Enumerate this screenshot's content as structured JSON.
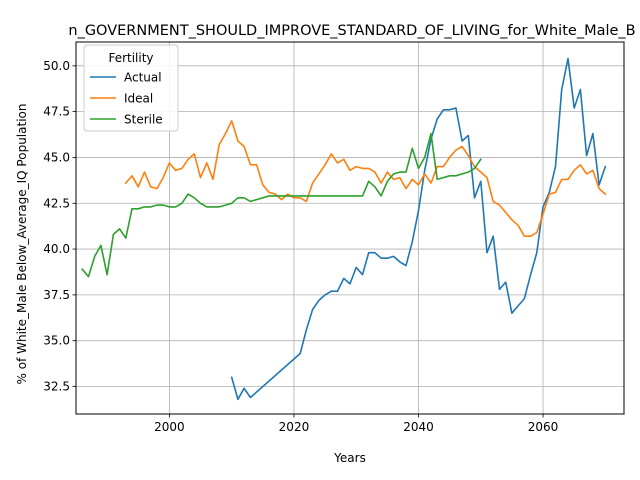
{
  "chart_data": {
    "type": "line",
    "title": "n_GOVERNMENT_SHOULD_IMPROVE_STANDARD_OF_LIVING_for_White_Male_B",
    "xlabel": "Years",
    "ylabel": "% of White_Male Below_Average_IQ Population",
    "xlim": [
      1985,
      2073
    ],
    "ylim": [
      31.0,
      51.3
    ],
    "xticks": [
      2000,
      2020,
      2040,
      2060
    ],
    "xtick_labels": [
      "2000",
      "2020",
      "2040",
      "2060"
    ],
    "yticks": [
      32.5,
      35.0,
      37.5,
      40.0,
      42.5,
      45.0,
      47.5,
      50.0
    ],
    "ytick_labels": [
      "32.5",
      "35.0",
      "37.5",
      "40.0",
      "42.5",
      "45.0",
      "47.5",
      "50.0"
    ],
    "grid": true,
    "legend": {
      "title": "Fertility",
      "position": "top-left"
    },
    "series": [
      {
        "name": "Actual",
        "color": "#1f77b4",
        "x": [
          2010,
          2011,
          2012,
          2013,
          2021,
          2022,
          2023,
          2024,
          2025,
          2026,
          2027,
          2028,
          2029,
          2030,
          2031,
          2032,
          2033,
          2034,
          2035,
          2036,
          2037,
          2038,
          2039,
          2040,
          2041,
          2042,
          2043,
          2044,
          2045,
          2046,
          2047,
          2048,
          2049,
          2050,
          2051,
          2052,
          2053,
          2054,
          2055,
          2056,
          2057,
          2058,
          2059,
          2060,
          2061,
          2062,
          2063,
          2064,
          2065,
          2066,
          2067,
          2068,
          2069,
          2070
        ],
        "y": [
          33.0,
          31.8,
          32.4,
          31.9,
          34.3,
          35.6,
          36.7,
          37.2,
          37.5,
          37.7,
          37.7,
          38.4,
          38.1,
          39.0,
          38.6,
          39.8,
          39.8,
          39.5,
          39.5,
          39.6,
          39.3,
          39.1,
          40.4,
          42.1,
          44.3,
          46.0,
          47.1,
          47.6,
          47.6,
          47.7,
          45.9,
          46.2,
          42.8,
          43.7,
          39.8,
          40.7,
          37.8,
          38.2,
          36.5,
          36.9,
          37.3,
          38.6,
          39.8,
          42.3,
          43.1,
          44.5,
          48.7,
          50.4,
          47.7,
          48.7,
          45.1,
          46.3,
          43.5,
          44.5
        ]
      },
      {
        "name": "Ideal",
        "color": "#ff7f0e",
        "x": [
          1993,
          1994,
          1995,
          1996,
          1997,
          1998,
          1999,
          2000,
          2001,
          2002,
          2003,
          2004,
          2005,
          2006,
          2007,
          2008,
          2009,
          2010,
          2011,
          2012,
          2013,
          2014,
          2015,
          2016,
          2017,
          2018,
          2019,
          2020,
          2021,
          2022,
          2023,
          2024,
          2025,
          2026,
          2027,
          2028,
          2029,
          2030,
          2031,
          2032,
          2033,
          2034,
          2035,
          2036,
          2037,
          2038,
          2039,
          2040,
          2041,
          2042,
          2043,
          2044,
          2045,
          2046,
          2047,
          2048,
          2049,
          2050,
          2051,
          2052,
          2053,
          2054,
          2055,
          2056,
          2057,
          2058,
          2059,
          2060,
          2061,
          2062,
          2063,
          2064,
          2065,
          2066,
          2067,
          2068,
          2069,
          2070
        ],
        "y": [
          43.6,
          44.0,
          43.4,
          44.2,
          43.4,
          43.3,
          43.9,
          44.7,
          44.3,
          44.4,
          44.9,
          45.2,
          43.9,
          44.7,
          43.8,
          45.7,
          46.3,
          47.0,
          45.9,
          45.6,
          44.6,
          44.6,
          43.5,
          43.1,
          43.0,
          42.7,
          43.0,
          42.8,
          42.8,
          42.6,
          43.6,
          44.1,
          44.6,
          45.2,
          44.7,
          44.9,
          44.3,
          44.5,
          44.4,
          44.4,
          44.2,
          43.6,
          44.2,
          43.8,
          43.9,
          43.3,
          43.8,
          43.5,
          44.1,
          43.6,
          44.5,
          44.5,
          45.0,
          45.4,
          45.6,
          45.1,
          44.5,
          44.2,
          43.9,
          42.6,
          42.4,
          42.0,
          41.6,
          41.3,
          40.7,
          40.7,
          40.9,
          41.9,
          43.0,
          43.1,
          43.8,
          43.8,
          44.3,
          44.6,
          44.1,
          44.3,
          43.3,
          43.0
        ]
      },
      {
        "name": "Sterile",
        "color": "#2ca02c",
        "x": [
          1986,
          1987,
          1988,
          1989,
          1990,
          1991,
          1992,
          1993,
          1994,
          1995,
          1996,
          1997,
          1998,
          1999,
          2000,
          2001,
          2002,
          2003,
          2004,
          2005,
          2006,
          2007,
          2008,
          2009,
          2010,
          2011,
          2012,
          2013,
          2014,
          2015,
          2016,
          2017,
          2018,
          2019,
          2020,
          2021,
          2022,
          2023,
          2024,
          2025,
          2026,
          2027,
          2028,
          2029,
          2030,
          2031,
          2032,
          2033,
          2034,
          2035,
          2036,
          2037,
          2038,
          2039,
          2040,
          2041,
          2042,
          2043,
          2044,
          2045,
          2046,
          2047,
          2048,
          2049,
          2050
        ],
        "y": [
          38.9,
          38.5,
          39.6,
          40.2,
          38.6,
          40.8,
          41.1,
          40.6,
          42.2,
          42.2,
          42.3,
          42.3,
          42.4,
          42.4,
          42.3,
          42.3,
          42.5,
          43.0,
          42.8,
          42.5,
          42.3,
          42.3,
          42.3,
          42.4,
          42.5,
          42.8,
          42.8,
          42.6,
          42.7,
          42.8,
          42.9,
          42.9,
          42.9,
          42.9,
          42.9,
          42.9,
          42.9,
          42.9,
          42.9,
          42.9,
          42.9,
          42.9,
          42.9,
          42.9,
          42.9,
          42.9,
          43.7,
          43.4,
          42.9,
          43.7,
          44.1,
          44.2,
          44.2,
          45.5,
          44.4,
          45.0,
          46.3,
          43.8,
          43.9,
          44.0,
          44.0,
          44.1,
          44.2,
          44.4,
          44.9
        ]
      }
    ]
  }
}
